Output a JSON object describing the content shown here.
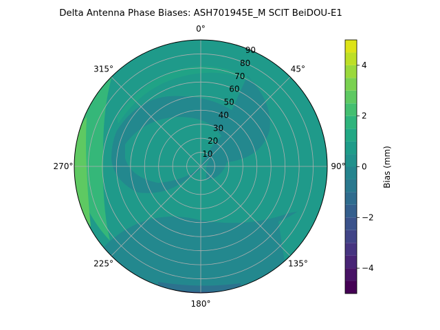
{
  "chart_data": {
    "type": "heatmap",
    "projection": "polar",
    "title": "Delta Antenna Phase Biases: ASH701945E_M    SCIT BeiDOU-E1",
    "angular_axis": {
      "direction": "clockwise",
      "zero_location": "top",
      "ticks": [
        "0°",
        "45°",
        "90°",
        "135°",
        "180°",
        "225°",
        "270°",
        "315°"
      ],
      "grid": true
    },
    "radial_axis": {
      "range": [
        0,
        90
      ],
      "ticks": [
        10,
        20,
        30,
        40,
        50,
        60,
        70,
        80,
        90
      ],
      "grid": true
    },
    "colorbar": {
      "label": "Bias (mm)",
      "range": [
        -5,
        5
      ],
      "ticks": [
        -4,
        -2,
        0,
        2,
        4
      ],
      "levels": [
        -5,
        -4.5,
        -4,
        -3.5,
        -3,
        -2.5,
        -2,
        -1.5,
        -1,
        -0.5,
        0,
        0.5,
        1,
        1.5,
        2,
        2.5,
        3,
        3.5,
        4,
        4.5,
        5
      ],
      "colormap": "viridis"
    },
    "regions": [
      {
        "level": [
          0,
          0.5
        ],
        "description": "base field"
      },
      {
        "level": [
          0.5,
          1
        ],
        "description": "northern band and southeast"
      },
      {
        "level": [
          -0.5,
          0
        ],
        "description": "central ring and south"
      },
      {
        "level": [
          -1,
          -0.5
        ],
        "description": "south edge"
      },
      {
        "level": [
          1,
          1.5
        ],
        "description": "west edge"
      },
      {
        "level": [
          1.5,
          2
        ],
        "description": "far west edge"
      }
    ]
  }
}
